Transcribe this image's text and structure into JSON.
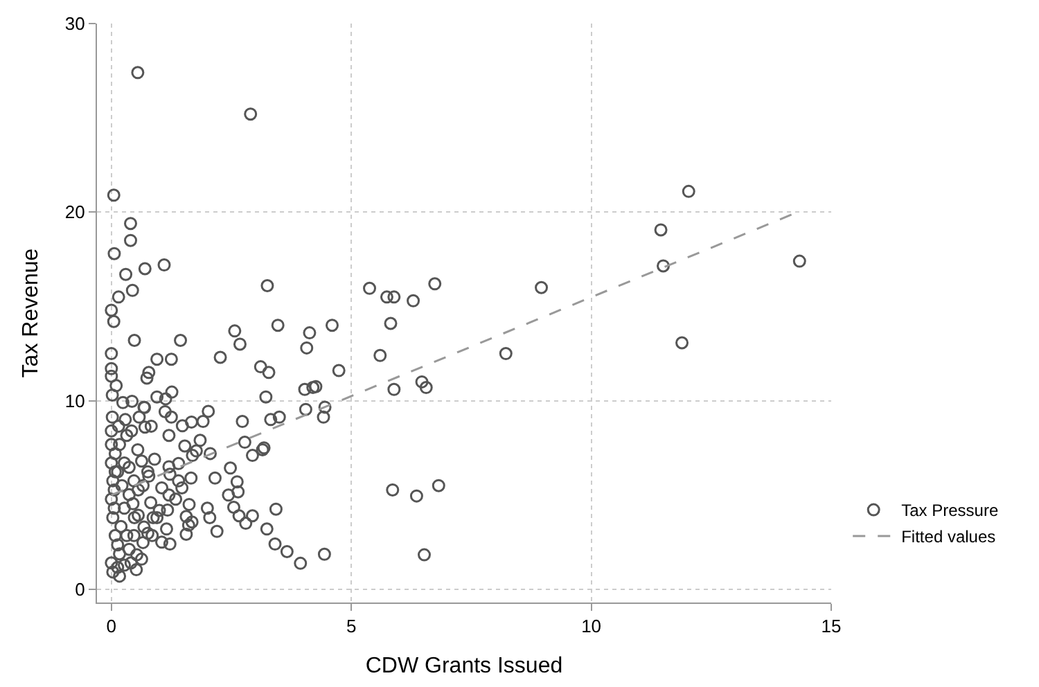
{
  "chart_data": {
    "type": "scatter",
    "xlabel": "CDW Grants Issued",
    "ylabel": "Tax Revenue",
    "xlim": [
      -0.3,
      15
    ],
    "ylim": [
      -0.7,
      30
    ],
    "xticks": [
      0,
      5,
      10,
      15
    ],
    "yticks": [
      0,
      10,
      20,
      30
    ],
    "grid": true,
    "legend": "right",
    "series": [
      {
        "name": "Tax Pressure",
        "marker": "circle",
        "color": "#555555",
        "x": [
          0.55,
          2.9,
          0.05,
          0.4,
          0.4,
          0.06,
          0.3,
          1.1,
          0.7,
          3.25,
          5.38,
          5.74,
          5.89,
          6.29,
          6.74,
          5.82,
          8.96,
          4.6,
          5.6,
          8.22,
          4.74,
          6.47,
          6.56,
          5.89,
          4.45,
          4.42,
          5.86,
          6.36,
          6.82,
          4.44,
          6.52,
          4.26,
          12.03,
          11.45,
          11.5,
          14.34,
          11.89,
          0.44,
          0.15,
          0,
          0.05,
          0.48,
          1.44,
          2.57,
          2.68,
          3.47,
          4.13,
          4.07,
          0,
          0,
          0,
          0.78,
          0.74,
          0.95,
          1.25,
          2.27,
          3.11,
          3.28,
          3.22,
          4.03,
          4.2,
          4.05,
          3.5,
          3.32,
          2.73,
          2.02,
          1.91,
          1.67,
          1.48,
          1.25,
          1.12,
          1.26,
          1.13,
          0.95,
          0.68,
          0.43,
          0.24,
          0.02,
          0.1,
          2.78,
          3.18,
          2.94,
          3.15,
          2.06,
          1.85,
          1.77,
          1.69,
          1.53,
          1.2,
          1.2,
          1.4,
          1.66,
          2.16,
          2.48,
          2.62,
          2.64,
          2.44,
          2.0,
          2.05,
          2.2,
          2.55,
          2.66,
          2.8,
          2.94,
          3.43,
          3.24,
          3.41,
          3.66,
          3.94,
          1.62,
          1.56,
          1.61,
          1.56,
          1.4,
          1.34,
          1.2,
          1.17,
          1.15,
          1.05,
          1.22,
          0.82,
          0.78,
          0.9,
          0.63,
          0.55,
          0.7,
          0.83,
          0.58,
          0.42,
          0.29,
          0.69,
          0.53,
          0.63,
          0.52,
          0.41,
          0.37,
          0.76,
          0.68,
          0.87,
          0.56,
          0.47,
          0.37,
          0.45,
          0.03,
          0,
          0.08,
          0.03,
          0,
          0.03,
          0,
          0,
          0,
          0.02,
          0.17,
          0.2,
          0.27,
          0.22,
          0.27,
          0.17,
          0.32,
          0.15,
          0.13,
          0.27,
          0.13,
          0.13,
          0.08,
          0.37,
          0.56,
          0.66,
          0.76,
          1.05,
          0.95,
          1.0,
          0.85,
          0.66,
          0.47,
          0.48,
          0.32,
          0.06,
          0.06,
          0.08,
          0.17,
          1.22,
          1.47,
          1.68
        ],
        "values": [
          27.4,
          25.2,
          20.9,
          19.4,
          18.5,
          17.8,
          16.7,
          17.2,
          17.0,
          16.1,
          15.96,
          15.5,
          15.5,
          15.3,
          16.2,
          14.1,
          16.0,
          14.0,
          12.4,
          12.5,
          11.6,
          11.0,
          10.7,
          10.6,
          9.66,
          9.13,
          5.27,
          4.95,
          5.5,
          1.86,
          1.83,
          10.75,
          21.1,
          19.06,
          17.15,
          17.4,
          13.07,
          15.85,
          15.5,
          14.8,
          14.2,
          13.2,
          13.2,
          13.7,
          13.0,
          14.0,
          13.6,
          12.8,
          12.5,
          11.7,
          11.3,
          11.5,
          11.2,
          12.2,
          12.2,
          12.3,
          11.8,
          11.5,
          10.2,
          10.6,
          10.7,
          9.54,
          9.13,
          9.0,
          8.9,
          9.44,
          8.9,
          8.87,
          8.67,
          9.13,
          9.42,
          10.46,
          10.1,
          10.2,
          9.66,
          9.97,
          9.9,
          10.3,
          10.8,
          7.8,
          7.5,
          7.1,
          7.4,
          7.2,
          7.9,
          7.34,
          7.1,
          7.6,
          8.16,
          6.5,
          6.67,
          5.9,
          5.9,
          6.43,
          5.7,
          5.17,
          5.0,
          4.3,
          3.8,
          3.07,
          4.35,
          3.9,
          3.5,
          3.9,
          4.25,
          3.2,
          2.4,
          2.0,
          1.38,
          4.5,
          3.86,
          3.4,
          2.92,
          5.75,
          4.78,
          5.0,
          4.2,
          3.2,
          2.5,
          2.4,
          4.6,
          6.0,
          6.9,
          6.8,
          7.4,
          8.6,
          8.65,
          9.13,
          8.4,
          9.0,
          9.64,
          1.83,
          1.6,
          1.04,
          1.4,
          2.12,
          2.97,
          3.3,
          3.8,
          3.93,
          5.75,
          6.47,
          4.54,
          0.92,
          1.4,
          2.85,
          3.8,
          4.78,
          5.75,
          6.7,
          7.68,
          8.4,
          9.13,
          1.88,
          3.33,
          4.3,
          5.5,
          6.7,
          7.68,
          8.16,
          8.65,
          1.16,
          1.28,
          2.36,
          6.23,
          7.2,
          5.02,
          5.27,
          5.5,
          6.23,
          5.38,
          3.8,
          4.18,
          2.85,
          2.48,
          2.85,
          3.8,
          2.85,
          4.3,
          5.27,
          6.23,
          0.7,
          6.1,
          5.38,
          3.57
        ]
      },
      {
        "name": "Fitted values",
        "type": "line",
        "marker": "none",
        "line_style": "dashed",
        "color": "#999999",
        "x": [
          0,
          14.3
        ],
        "values": [
          5.0,
          20.0
        ]
      }
    ]
  }
}
